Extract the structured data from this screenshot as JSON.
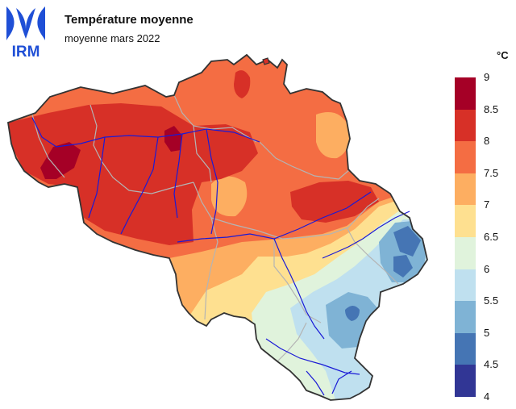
{
  "header": {
    "logo_text": "IRM",
    "title": "Température moyenne",
    "subtitle": "moyenne mars 2022"
  },
  "legend": {
    "unit": "°C",
    "ticks": [
      "9",
      "8.5",
      "8",
      "7.5",
      "7",
      "6.5",
      "6",
      "5.5",
      "5",
      "4.5",
      "4"
    ],
    "classes": [
      {
        "range": "8.5-9",
        "color": "#a50026"
      },
      {
        "range": "8-8.5",
        "color": "#d73027"
      },
      {
        "range": "7.5-8",
        "color": "#f46d43"
      },
      {
        "range": "7-7.5",
        "color": "#fdae61"
      },
      {
        "range": "6.5-7",
        "color": "#fee090"
      },
      {
        "range": "6-6.5",
        "color": "#e0f3dc"
      },
      {
        "range": "5.5-6",
        "color": "#bfe0ef"
      },
      {
        "range": "5-5.5",
        "color": "#7fb3d5"
      },
      {
        "range": "4.5-5",
        "color": "#4575b4"
      },
      {
        "range": "4-4.5",
        "color": "#313695"
      }
    ]
  },
  "colors": {
    "logo": "#1f4fd6",
    "border": "#333333",
    "rivers": "#1a1ad6",
    "provinces": "#b4b4b4"
  }
}
